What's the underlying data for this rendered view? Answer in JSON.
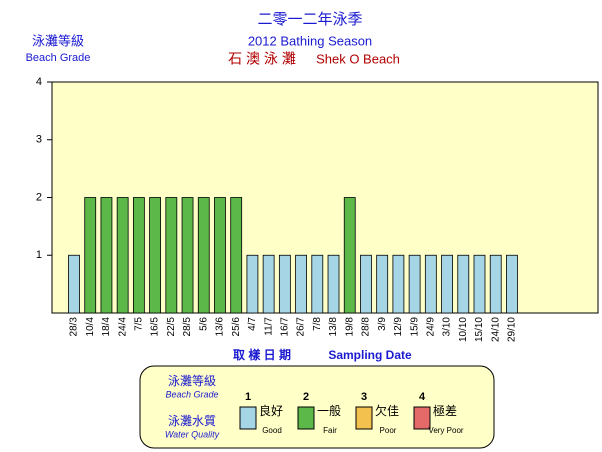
{
  "chart_data": {
    "type": "bar",
    "title": "二零一二年泳季",
    "subtitle": "2012 Bathing Season",
    "beach_name_zh": "石 澳 泳 灘",
    "beach_name_en": "Shek O Beach",
    "y_label_zh": "泳灘等級",
    "y_label_en": "Beach Grade",
    "x_label_zh": "取 樣 日 期",
    "x_label_en": "Sampling Date",
    "categories": [
      "28/3",
      "10/4",
      "18/4",
      "24/4",
      "7/5",
      "16/5",
      "22/5",
      "28/5",
      "5/6",
      "13/6",
      "25/6",
      "4/7",
      "11/7",
      "16/7",
      "26/7",
      "7/8",
      "13/8",
      "19/8",
      "28/8",
      "3/9",
      "12/9",
      "15/9",
      "24/9",
      "3/10",
      "10/10",
      "15/10",
      "24/10",
      "29/10"
    ],
    "values": [
      1,
      2,
      2,
      2,
      2,
      2,
      2,
      2,
      2,
      2,
      2,
      1,
      1,
      1,
      1,
      1,
      1,
      2,
      1,
      1,
      1,
      1,
      1,
      1,
      1,
      1,
      1,
      1
    ],
    "ylim": [
      0,
      4
    ],
    "yticks": [
      1,
      2,
      3,
      4
    ],
    "legend": {
      "grade_zh": "泳灘等級",
      "grade_en": "Beach Grade",
      "quality_zh": "泳灘水質",
      "quality_en": "Water Quality",
      "items": [
        {
          "grade": 1,
          "zh": "良好",
          "en": "Good",
          "color": "#a6d6e6"
        },
        {
          "grade": 2,
          "zh": "一般",
          "en": "Fair",
          "color": "#5cb848"
        },
        {
          "grade": 3,
          "zh": "欠佳",
          "en": "Poor",
          "color": "#f2c14e"
        },
        {
          "grade": 4,
          "zh": "極差",
          "en": "Very Poor",
          "color": "#e46a6a"
        }
      ]
    }
  }
}
